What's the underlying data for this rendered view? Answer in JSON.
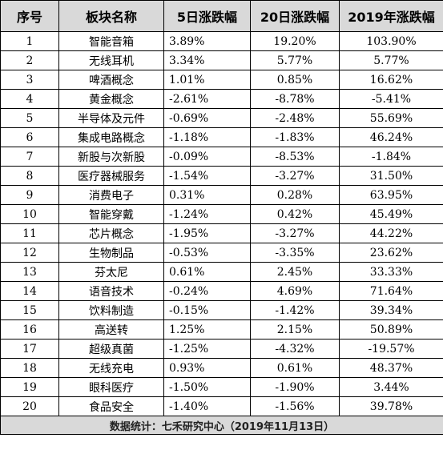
{
  "headers": [
    "序号",
    "板块名称",
    "5日涨跌幅",
    "20日涨跌幅",
    "2019年涨跌幅"
  ],
  "rows": [
    [
      "1",
      "智能音箱",
      "3.89%",
      "19.20%",
      "103.90%"
    ],
    [
      "2",
      "无线耳机",
      "3.34%",
      "5.77%",
      "5.77%"
    ],
    [
      "3",
      "啤酒概念",
      "1.01%",
      "0.85%",
      "16.62%"
    ],
    [
      "4",
      "黄金概念",
      "-2.61%",
      "-8.78%",
      "-5.41%"
    ],
    [
      "5",
      "半导体及元件",
      "-0.69%",
      "-2.48%",
      "55.69%"
    ],
    [
      "6",
      "集成电路概念",
      "-1.18%",
      "-1.83%",
      "46.24%"
    ],
    [
      "7",
      "新股与次新股",
      "-0.09%",
      "-8.53%",
      "-1.84%"
    ],
    [
      "8",
      "医疗器械服务",
      "-1.54%",
      "-3.27%",
      "31.50%"
    ],
    [
      "9",
      "消费电子",
      "0.31%",
      "0.28%",
      "63.95%"
    ],
    [
      "10",
      "智能穿戴",
      "-1.24%",
      "0.42%",
      "45.49%"
    ],
    [
      "11",
      "芯片概念",
      "-1.95%",
      "-3.27%",
      "44.22%"
    ],
    [
      "12",
      "生物制品",
      "-0.53%",
      "-3.35%",
      "23.62%"
    ],
    [
      "13",
      "芬太尼",
      "0.61%",
      "2.45%",
      "33.33%"
    ],
    [
      "14",
      "语音技术",
      "-0.24%",
      "4.69%",
      "71.64%"
    ],
    [
      "15",
      "饮料制造",
      "-0.15%",
      "-1.42%",
      "39.34%"
    ],
    [
      "16",
      "高送转",
      "1.25%",
      "2.15%",
      "50.89%"
    ],
    [
      "17",
      "超级真菌",
      "-1.25%",
      "-4.32%",
      "-19.57%"
    ],
    [
      "18",
      "无线充电",
      "0.93%",
      "0.61%",
      "48.37%"
    ],
    [
      "19",
      "眼科医疗",
      "-1.50%",
      "-1.90%",
      "3.44%"
    ],
    [
      "20",
      "食品安全",
      "-1.40%",
      "-1.56%",
      "39.78%"
    ]
  ],
  "footer": "数据统计：七禾研究中心（2019年11月13日）"
}
